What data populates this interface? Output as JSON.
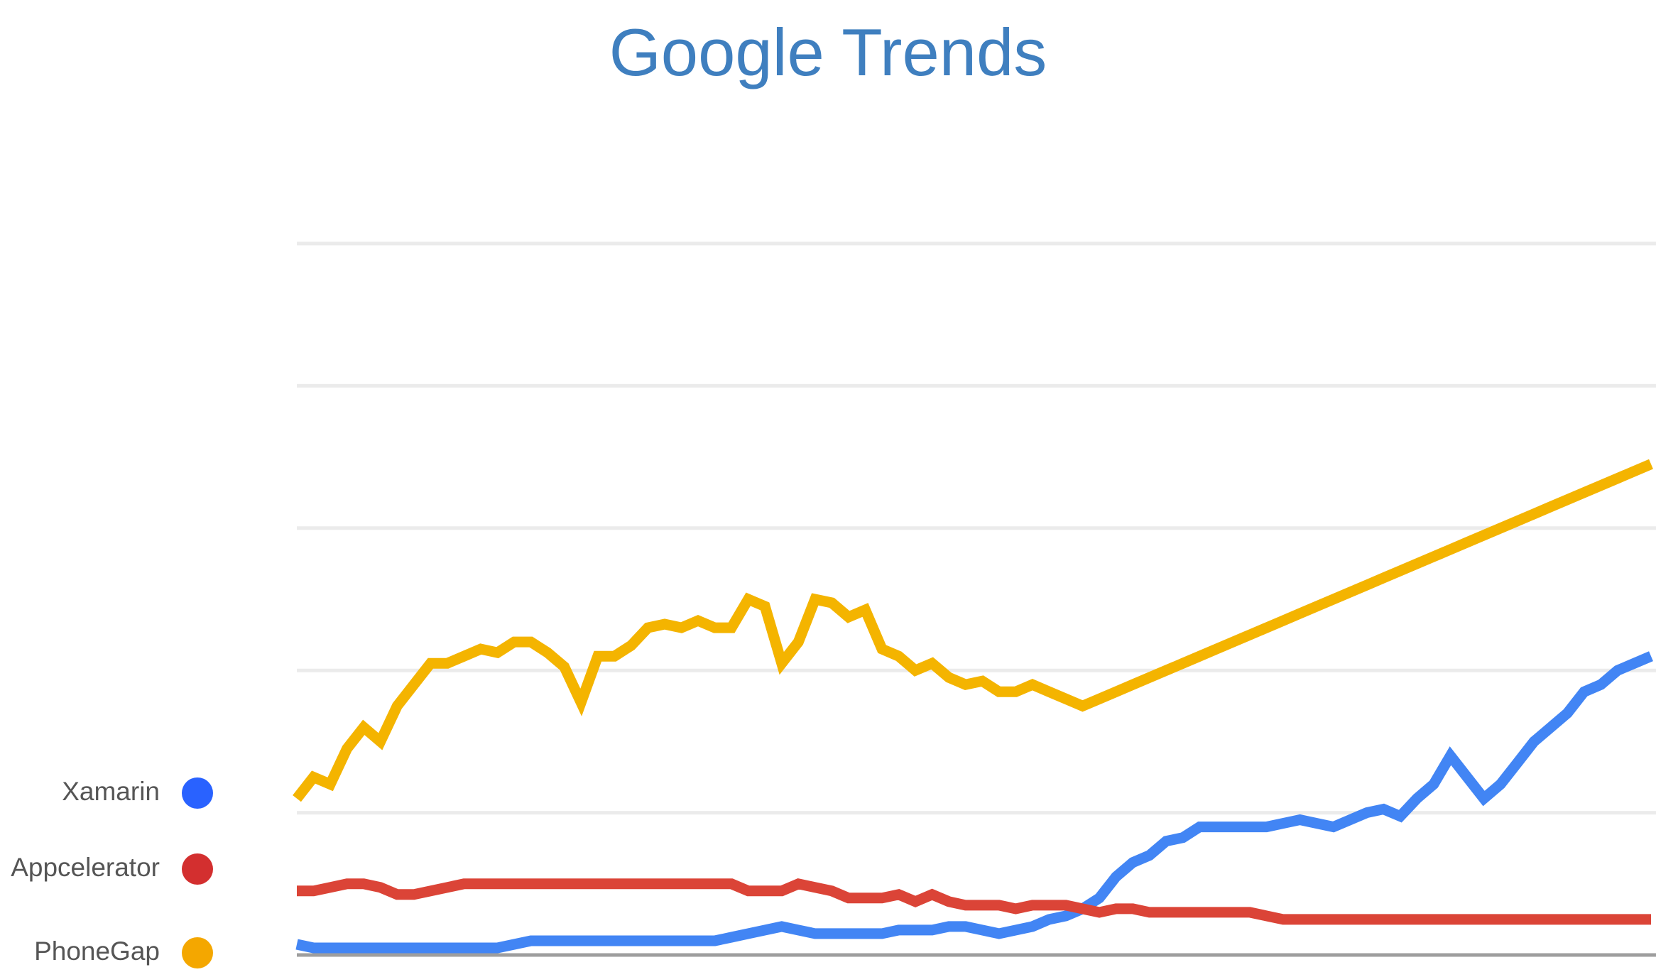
{
  "chart_data": {
    "type": "line",
    "title": "Google Trends",
    "xlabel": "",
    "ylabel": "",
    "ylim": [
      0,
      100
    ],
    "grid": true,
    "legend_placement": "bottom-left",
    "x": [
      0,
      1,
      2,
      3,
      4,
      5,
      6,
      7,
      8,
      9,
      10,
      11,
      12,
      13,
      14,
      15,
      16,
      17,
      18,
      19,
      20,
      21,
      22,
      23,
      24,
      25,
      26,
      27,
      28,
      29,
      30,
      31,
      32,
      33,
      34,
      35,
      36,
      37,
      38,
      39,
      40,
      41,
      42,
      43,
      44,
      45,
      46,
      47,
      48,
      49,
      50,
      51,
      52,
      53,
      54,
      55,
      56,
      57,
      58,
      59,
      60,
      61,
      62,
      63,
      64,
      65,
      66,
      67,
      68,
      69,
      70,
      71,
      72,
      73,
      74,
      75,
      76,
      77,
      78,
      79,
      80,
      81
    ],
    "series": [
      {
        "name": "Xamarin",
        "color": "#4285f4",
        "legend_color": "#2962ff",
        "values": [
          1.5,
          1,
          1,
          1,
          1,
          1,
          1,
          1,
          1,
          1,
          1,
          1,
          1,
          1.5,
          2,
          2,
          2,
          2,
          2,
          2,
          2,
          2,
          2,
          2,
          2,
          2,
          2.5,
          3,
          3.5,
          4,
          3.5,
          3,
          3,
          3,
          3,
          3,
          3.5,
          3.5,
          3.5,
          4,
          4,
          3.5,
          3,
          3.5,
          4,
          5,
          5.5,
          6.5,
          8,
          11,
          13,
          14,
          16,
          16.5,
          18,
          18,
          18,
          18,
          18,
          18.5,
          19,
          18.5,
          18,
          19,
          20,
          20.5,
          19.5,
          22,
          24,
          28,
          25,
          22,
          24,
          27,
          30,
          32,
          34,
          37,
          38,
          40,
          41,
          42
        ]
      },
      {
        "name": "Appcelerator",
        "color": "#db4437",
        "legend_color": "#d32f2f",
        "values": [
          9,
          9,
          9.5,
          10,
          10,
          9.5,
          8.5,
          8.5,
          9,
          9.5,
          10,
          10,
          10,
          10,
          10,
          10,
          10,
          10,
          10,
          10,
          10,
          10,
          10,
          10,
          10,
          10,
          10,
          9,
          9,
          9,
          10,
          9.5,
          9,
          8,
          8,
          8,
          8.5,
          7.5,
          8.5,
          7.5,
          7,
          7,
          7,
          6.5,
          7,
          7,
          7,
          6.5,
          6,
          6.5,
          6.5,
          6,
          6,
          6,
          6,
          6,
          6,
          6,
          5.5,
          5,
          5,
          5,
          5,
          5,
          5,
          5,
          5,
          5,
          5,
          5,
          5,
          5,
          5,
          5,
          5,
          5,
          5,
          5,
          5,
          5,
          5,
          5
        ]
      },
      {
        "name": "PhoneGap",
        "color": "#f4b400",
        "legend_color": "#f4a700",
        "values": [
          22,
          25,
          24,
          29,
          32,
          30,
          35,
          38,
          41,
          41,
          42,
          43,
          42.5,
          44,
          44,
          42.5,
          40.5,
          35.5,
          42,
          42,
          43.5,
          46,
          46.5,
          46,
          47,
          46,
          46,
          50,
          49,
          41,
          44,
          50,
          49.5,
          47.5,
          48.5,
          43,
          42,
          40,
          41,
          39,
          38,
          38.5,
          37,
          37,
          38,
          37,
          36,
          35,
          36,
          37,
          38,
          39,
          40,
          41,
          42,
          43,
          44,
          45,
          46,
          47,
          48,
          49,
          50,
          51,
          52,
          53,
          54,
          55,
          56,
          57,
          58,
          59,
          60,
          61,
          62,
          63,
          64,
          65,
          66,
          67,
          68,
          69
        ]
      }
    ]
  }
}
